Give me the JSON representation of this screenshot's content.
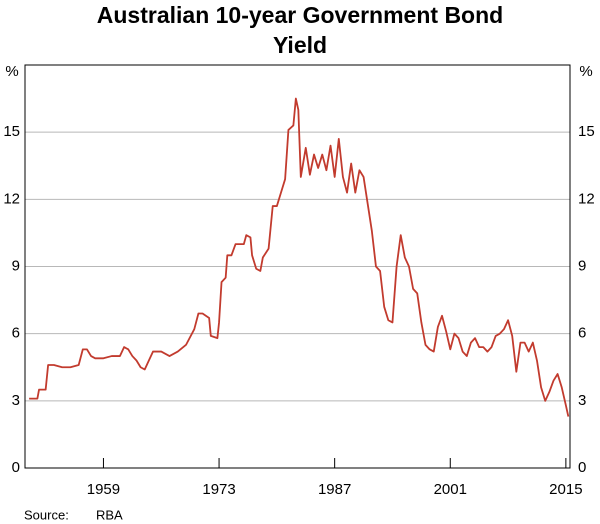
{
  "chart_data": {
    "type": "line",
    "title": "Australian 10-year Government Bond Yield",
    "y_label": "%",
    "y2_label": "%",
    "source_label": "Source:",
    "source": "RBA",
    "xlim": [
      1949.5,
      2015.5
    ],
    "xticks": [
      1959,
      1973,
      1987,
      2001,
      2015
    ],
    "ylim": [
      0,
      18
    ],
    "yticks": [
      0,
      3,
      6,
      9,
      12,
      15
    ],
    "grid": true,
    "series": [
      {
        "name": "Australian 10-year Government Bond Yield",
        "color": "#c23b2e",
        "x": [
          1950,
          1951,
          1951.2,
          1952,
          1952.3,
          1953,
          1954,
          1955,
          1956,
          1956.5,
          1957,
          1957.5,
          1958,
          1959,
          1960,
          1961,
          1961.5,
          1962,
          1962.5,
          1963,
          1963.5,
          1964,
          1964.5,
          1965,
          1966,
          1967,
          1968,
          1969,
          1970,
          1970.5,
          1971,
          1971.8,
          1972,
          1972.8,
          1973,
          1973.3,
          1973.8,
          1974,
          1974.5,
          1975,
          1976,
          1976.3,
          1976.8,
          1977,
          1977.5,
          1978,
          1978.3,
          1979,
          1979.5,
          1980,
          1980.5,
          1981,
          1981.4,
          1982,
          1982.3,
          1982.6,
          1982.9,
          1983.5,
          1984,
          1984.5,
          1985,
          1985.5,
          1986,
          1986.5,
          1987,
          1987.5,
          1988,
          1988.5,
          1989,
          1989.5,
          1990,
          1990.5,
          1991,
          1991.5,
          1992,
          1992.5,
          1993,
          1993.5,
          1994,
          1994.5,
          1995,
          1995.5,
          1996,
          1996.5,
          1997,
          1997.5,
          1998,
          1998.5,
          1999,
          1999.5,
          2000,
          2000.5,
          2001,
          2001.5,
          2002,
          2002.5,
          2003,
          2003.5,
          2004,
          2004.5,
          2005,
          2005.5,
          2006,
          2006.5,
          2007,
          2007.5,
          2008,
          2008.5,
          2009,
          2009.5,
          2010,
          2010.5,
          2011,
          2011.5,
          2012,
          2012.5,
          2013,
          2013.5,
          2014,
          2014.5,
          2015,
          2015.3
        ],
        "values": [
          3.1,
          3.1,
          3.5,
          3.5,
          4.6,
          4.6,
          4.5,
          4.5,
          4.6,
          5.3,
          5.3,
          5.0,
          4.9,
          4.9,
          5.0,
          5.0,
          5.4,
          5.3,
          5.0,
          4.8,
          4.5,
          4.4,
          4.8,
          5.2,
          5.2,
          5.0,
          5.2,
          5.5,
          6.2,
          6.9,
          6.9,
          6.7,
          5.9,
          5.8,
          6.5,
          8.3,
          8.5,
          9.5,
          9.5,
          10.0,
          10.0,
          10.4,
          10.3,
          9.5,
          8.9,
          8.8,
          9.4,
          9.8,
          11.7,
          11.7,
          12.3,
          12.9,
          15.1,
          15.3,
          16.5,
          16.0,
          13.0,
          14.3,
          13.1,
          14.0,
          13.4,
          14.0,
          13.3,
          14.4,
          13.0,
          14.7,
          13.0,
          12.3,
          13.6,
          12.3,
          13.3,
          13.0,
          11.8,
          10.6,
          9.0,
          8.8,
          7.2,
          6.6,
          6.5,
          9.0,
          10.4,
          9.4,
          9.0,
          8.0,
          7.8,
          6.5,
          5.5,
          5.3,
          5.2,
          6.3,
          6.8,
          6.1,
          5.3,
          6.0,
          5.8,
          5.2,
          5.0,
          5.6,
          5.8,
          5.4,
          5.4,
          5.2,
          5.4,
          5.9,
          6.0,
          6.2,
          6.6,
          5.9,
          4.3,
          5.6,
          5.6,
          5.2,
          5.6,
          4.8,
          3.6,
          3.0,
          3.4,
          3.9,
          4.2,
          3.6,
          2.8,
          2.3
        ]
      }
    ]
  }
}
